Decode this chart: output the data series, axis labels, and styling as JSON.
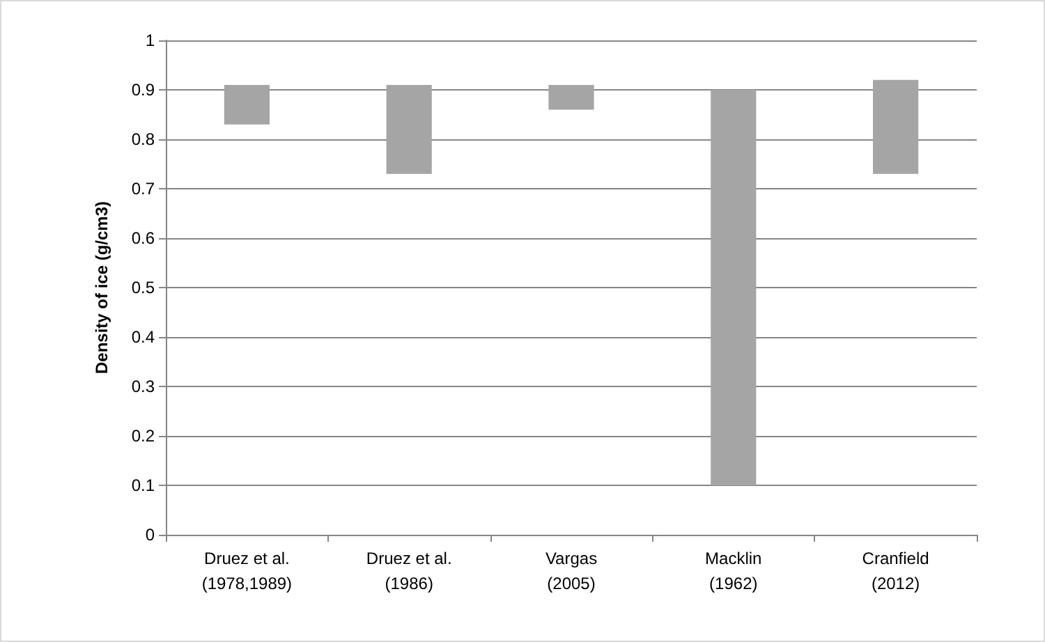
{
  "chart_data": {
    "type": "bar",
    "ylabel": "Density of ice (g/cm3)",
    "categories": [
      "Druez et al. (1978,1989)",
      "Druez et al. (1986)",
      "Vargas (2005)",
      "Macklin (1962)",
      "Cranfield (2012)"
    ],
    "base": [
      0.83,
      0.73,
      0.86,
      0.1,
      0.73
    ],
    "values": [
      0.08,
      0.18,
      0.05,
      0.8,
      0.19
    ],
    "color": "#a5a5a5",
    "ylim": [
      0,
      1
    ],
    "yticks": [
      0,
      0.1,
      0.2,
      0.3,
      0.4,
      0.5,
      0.6,
      0.7,
      0.8,
      0.9,
      1
    ],
    "grid": "y"
  }
}
